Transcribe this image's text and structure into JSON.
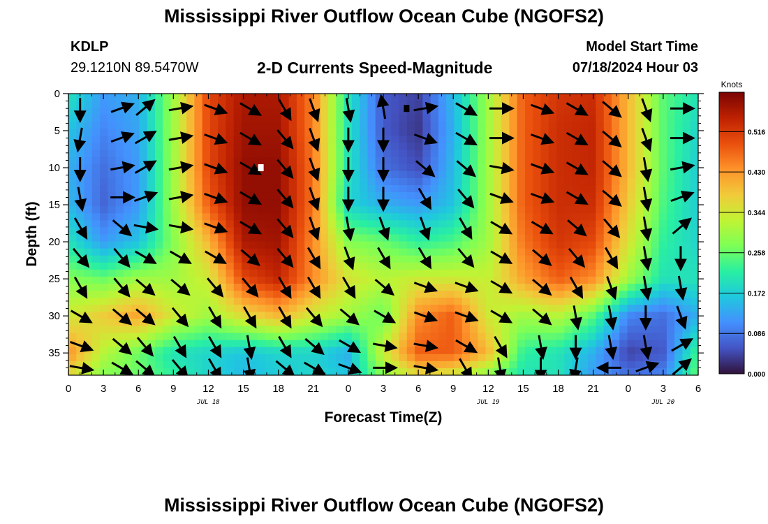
{
  "header": {
    "title": "Mississippi River Outflow Ocean Cube (NGOFS2)",
    "station": "KDLP",
    "coords": "29.1210N  89.5470W",
    "subtitle": "2-D Currents Speed-Magnitude",
    "start_label": "Model Start Time",
    "start_value": "07/18/2024 Hour 03"
  },
  "footer": {
    "title": "Mississippi River Outflow Ocean Cube (NGOFS2)"
  },
  "chart_data": {
    "type": "heatmap",
    "xlabel": "Forecast Time(Z)",
    "ylabel": "Depth (ft)",
    "x_unit": "forecast hours from 07/18/2024 00Z",
    "xlim": [
      0,
      54
    ],
    "ylim": [
      0,
      38
    ],
    "x_ticks": [
      0,
      3,
      6,
      9,
      12,
      15,
      18,
      21,
      24,
      27,
      30,
      33,
      36,
      39,
      42,
      45,
      48,
      51,
      54
    ],
    "x_tick_labels": [
      "0",
      "3",
      "6",
      "9",
      "12",
      "15",
      "18",
      "21",
      "0",
      "3",
      "6",
      "9",
      "12",
      "15",
      "18",
      "21",
      "0",
      "3",
      "6"
    ],
    "y_ticks": [
      0,
      5,
      10,
      15,
      20,
      25,
      30,
      35
    ],
    "date_labels": [
      {
        "x": 12,
        "text": "JUL 18"
      },
      {
        "x": 36,
        "text": "JUL 19"
      },
      {
        "x": 51,
        "text": "JUL 20"
      }
    ],
    "colorbar": {
      "title": "Knots",
      "ticks": [
        0.0,
        0.086,
        0.172,
        0.258,
        0.344,
        0.43,
        0.516
      ],
      "tick_labels": [
        "0.000",
        "0.086",
        "0.172",
        "0.258",
        "0.344",
        "0.430",
        "0.516"
      ],
      "min": 0.0,
      "max": 0.6,
      "colors": [
        "#30123b",
        "#4454c4",
        "#4490fe",
        "#1fc8de",
        "#29efa2",
        "#7dff56",
        "#c1f334",
        "#f1ca3a",
        "#fe922a",
        "#ea4f0d",
        "#be2102",
        "#7a0403"
      ]
    },
    "speed_field": {
      "description": "approximate current speed (knots) by depth band and forecast hour",
      "hours": [
        0,
        3,
        6,
        9,
        12,
        15,
        18,
        21,
        24,
        27,
        30,
        33,
        36,
        39,
        42,
        45,
        48,
        51,
        54
      ],
      "depths": [
        0,
        5,
        10,
        15,
        20,
        25,
        30,
        35,
        38
      ],
      "values": [
        [
          0.2,
          0.12,
          0.14,
          0.3,
          0.5,
          0.56,
          0.56,
          0.45,
          0.2,
          0.06,
          0.04,
          0.15,
          0.3,
          0.48,
          0.52,
          0.53,
          0.4,
          0.25,
          0.2
        ],
        [
          0.16,
          0.1,
          0.13,
          0.3,
          0.5,
          0.57,
          0.57,
          0.45,
          0.2,
          0.06,
          0.03,
          0.14,
          0.3,
          0.48,
          0.53,
          0.54,
          0.4,
          0.25,
          0.18
        ],
        [
          0.14,
          0.08,
          0.12,
          0.3,
          0.5,
          0.58,
          0.58,
          0.46,
          0.2,
          0.08,
          0.05,
          0.15,
          0.3,
          0.48,
          0.53,
          0.54,
          0.4,
          0.25,
          0.17
        ],
        [
          0.15,
          0.07,
          0.12,
          0.3,
          0.48,
          0.58,
          0.58,
          0.46,
          0.18,
          0.14,
          0.12,
          0.16,
          0.3,
          0.48,
          0.53,
          0.53,
          0.38,
          0.24,
          0.17
        ],
        [
          0.2,
          0.12,
          0.16,
          0.28,
          0.4,
          0.56,
          0.57,
          0.44,
          0.28,
          0.26,
          0.22,
          0.24,
          0.3,
          0.46,
          0.52,
          0.5,
          0.35,
          0.22,
          0.18
        ],
        [
          0.28,
          0.26,
          0.3,
          0.3,
          0.34,
          0.5,
          0.54,
          0.44,
          0.35,
          0.32,
          0.34,
          0.34,
          0.33,
          0.42,
          0.48,
          0.44,
          0.3,
          0.2,
          0.2
        ],
        [
          0.34,
          0.38,
          0.42,
          0.34,
          0.3,
          0.36,
          0.4,
          0.34,
          0.3,
          0.26,
          0.44,
          0.48,
          0.34,
          0.3,
          0.32,
          0.25,
          0.1,
          0.08,
          0.14
        ],
        [
          0.44,
          0.32,
          0.26,
          0.2,
          0.18,
          0.16,
          0.18,
          0.18,
          0.14,
          0.34,
          0.48,
          0.48,
          0.4,
          0.22,
          0.2,
          0.14,
          0.04,
          0.06,
          0.24
        ],
        [
          0.36,
          0.28,
          0.26,
          0.22,
          0.18,
          0.15,
          0.17,
          0.18,
          0.16,
          0.28,
          0.36,
          0.34,
          0.28,
          0.2,
          0.2,
          0.12,
          0.08,
          0.1,
          0.26
        ]
      ]
    },
    "vectors": {
      "description": "current direction arrows (degrees: 0=east, 90=north/up) per depth band and forecast hour",
      "hours": [
        1,
        4.5,
        6.5,
        9.5,
        12.5,
        15.5,
        18.5,
        21,
        24,
        27,
        30.5,
        34,
        37,
        40.5,
        43.5,
        46.5,
        49.5,
        52.5
      ],
      "depths": [
        2,
        6,
        10,
        14,
        18,
        22,
        26,
        30,
        34,
        37
      ],
      "angles": [
        [
          -90,
          20,
          40,
          10,
          -20,
          -30,
          -60,
          -70,
          -80,
          100,
          10,
          -30,
          0,
          -20,
          -30,
          -40,
          -70,
          0
        ],
        [
          -100,
          20,
          30,
          10,
          -20,
          -30,
          -50,
          -70,
          -90,
          -90,
          -20,
          -30,
          0,
          -20,
          -30,
          -40,
          -70,
          0
        ],
        [
          -90,
          10,
          30,
          10,
          -20,
          -30,
          -50,
          -70,
          -90,
          -90,
          -40,
          -40,
          -10,
          -20,
          -30,
          -40,
          -80,
          10
        ],
        [
          -80,
          0,
          20,
          10,
          -20,
          -30,
          -50,
          -70,
          -90,
          -90,
          -60,
          -50,
          -20,
          -20,
          -30,
          -40,
          -80,
          20
        ],
        [
          -60,
          -40,
          -10,
          -10,
          -20,
          -30,
          -50,
          -70,
          -80,
          -70,
          -70,
          -60,
          -30,
          -30,
          -40,
          -50,
          -80,
          40
        ],
        [
          -50,
          -50,
          -30,
          -30,
          -30,
          -40,
          -50,
          -60,
          -70,
          -60,
          -60,
          -50,
          -30,
          -40,
          -50,
          -60,
          -80,
          -90
        ],
        [
          -60,
          -50,
          -40,
          -40,
          -50,
          -50,
          -60,
          -60,
          -60,
          -40,
          -20,
          -20,
          -30,
          -40,
          -60,
          -70,
          -80,
          -80
        ],
        [
          -30,
          -40,
          -40,
          -50,
          -60,
          -60,
          -60,
          -50,
          -40,
          -30,
          -20,
          -20,
          -30,
          -40,
          -80,
          -80,
          -90,
          -70
        ],
        [
          -20,
          -40,
          -50,
          -60,
          -60,
          -80,
          -60,
          -40,
          -30,
          -10,
          -10,
          -30,
          -60,
          -80,
          -90,
          -80,
          -80,
          30
        ],
        [
          -10,
          -30,
          -40,
          -50,
          -60,
          -80,
          -40,
          -30,
          -20,
          0,
          -10,
          -60,
          -80,
          -90,
          -100,
          180,
          20,
          40
        ]
      ]
    },
    "markers": [
      {
        "x": 16.5,
        "y": 10,
        "color": "#ffffff"
      },
      {
        "x": 29,
        "y": 2,
        "color": "#000000"
      }
    ]
  }
}
